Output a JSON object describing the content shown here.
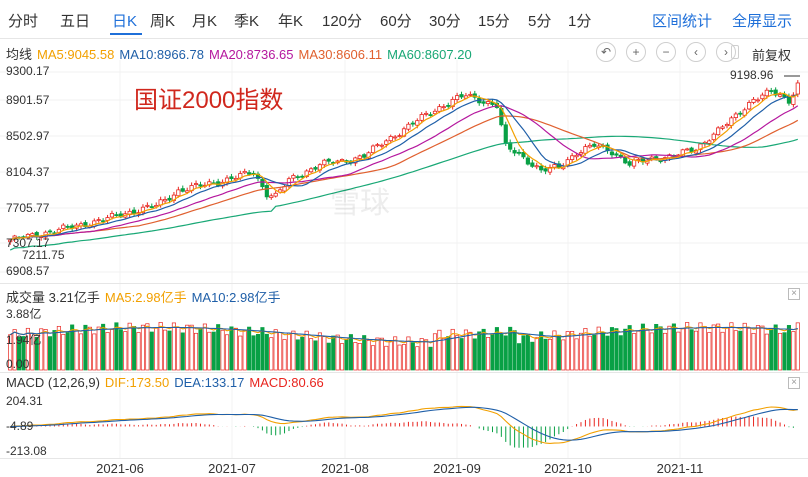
{
  "period_tabs": [
    "分时",
    "五日",
    "日K",
    "周K",
    "月K",
    "季K",
    "年K",
    "120分",
    "60分",
    "30分",
    "15分",
    "5分",
    "1分"
  ],
  "active_tab": "日K",
  "right_links": [
    "区间统计",
    "全屏显示"
  ],
  "controls": {
    "undo_icon": "↶",
    "zoom_in": "+",
    "zoom_out": "−",
    "prev": "‹",
    "next": "›",
    "adjust_label": "前复权"
  },
  "overlay_text": "国证2000指数",
  "watermark": "雪球",
  "colors": {
    "up": "#e8251f",
    "down": "#08a045",
    "ma5": "#f2a000",
    "ma10": "#1f5fa8",
    "ma20": "#b5179e",
    "ma30": "#e0602f",
    "ma60": "#19a876",
    "accent": "#1e6fd9"
  },
  "price_legend": {
    "label": "均线",
    "items": [
      {
        "text": "MA5:9045.58",
        "color": "#f2a000"
      },
      {
        "text": "MA10:8966.78",
        "color": "#1f5fa8"
      },
      {
        "text": "MA20:8736.65",
        "color": "#b5179e"
      },
      {
        "text": "MA30:8606.11",
        "color": "#e0602f"
      },
      {
        "text": "MA60:8607.20",
        "color": "#19a876"
      }
    ]
  },
  "price_axis": [
    "9300.17",
    "8901.57",
    "8502.97",
    "8104.37",
    "7705.77",
    "7307.17",
    "6908.57"
  ],
  "price_markers": {
    "high": "9198.96",
    "low": "7211.75"
  },
  "volume_legend": {
    "items": [
      {
        "text": "成交量 3.21亿手",
        "color": "#333333"
      },
      {
        "text": "MA5:2.98亿手",
        "color": "#f2a000"
      },
      {
        "text": "MA10:2.98亿手",
        "color": "#1f5fa8"
      }
    ],
    "axis_top": "3.88亿",
    "axis_mid": "1.94亿",
    "axis_bottom": "0.00"
  },
  "macd_legend": {
    "items": [
      {
        "text": "MACD (12,26,9)",
        "color": "#333333"
      },
      {
        "text": "DIF:173.50",
        "color": "#f2a000"
      },
      {
        "text": "DEA:133.17",
        "color": "#1f5fa8"
      },
      {
        "text": "MACD:80.66",
        "color": "#e8251f"
      }
    ],
    "axis": [
      "204.31",
      "-4.89",
      "-213.08"
    ]
  },
  "date_labels": [
    "2021-06",
    "2021-07",
    "2021-08",
    "2021-09",
    "2021-10",
    "2021-11"
  ],
  "chart_data": {
    "type": "candlestick",
    "title": "国证2000指数",
    "ylim": [
      6908.57,
      9300.17
    ],
    "x_months": [
      "2021-06",
      "2021-07",
      "2021-08",
      "2021-09",
      "2021-10",
      "2021-11"
    ],
    "close_keypoints": [
      [
        0,
        7290
      ],
      [
        10,
        7400
      ],
      [
        20,
        7520
      ],
      [
        28,
        7640
      ],
      [
        33,
        7700
      ],
      [
        38,
        7880
      ],
      [
        48,
        8000
      ],
      [
        55,
        8100
      ],
      [
        58,
        7850
      ],
      [
        60,
        7820
      ],
      [
        63,
        8000
      ],
      [
        70,
        8200
      ],
      [
        75,
        8230
      ],
      [
        80,
        8300
      ],
      [
        85,
        8480
      ],
      [
        90,
        8650
      ],
      [
        95,
        8820
      ],
      [
        100,
        8960
      ],
      [
        103,
        9020
      ],
      [
        106,
        8970
      ],
      [
        110,
        8900
      ],
      [
        112,
        8400
      ],
      [
        115,
        8320
      ],
      [
        120,
        8120
      ],
      [
        124,
        8160
      ],
      [
        128,
        8340
      ],
      [
        132,
        8420
      ],
      [
        136,
        8350
      ],
      [
        140,
        8200
      ],
      [
        145,
        8260
      ],
      [
        150,
        8300
      ],
      [
        155,
        8380
      ],
      [
        158,
        8520
      ],
      [
        163,
        8720
      ],
      [
        168,
        8980
      ],
      [
        172,
        9060
      ],
      [
        176,
        8960
      ],
      [
        178,
        9160
      ]
    ],
    "volume_ylim": [
      0,
      3.88
    ],
    "volume_unit": "亿手",
    "volume_latest": 3.21,
    "macd": {
      "params": [
        12,
        26,
        9
      ],
      "dif": 173.5,
      "dea": 133.17,
      "macd": 80.66,
      "ylim": [
        -213.08,
        204.31
      ]
    },
    "ma_latest": {
      "MA5": 9045.58,
      "MA10": 8966.78,
      "MA20": 8736.65,
      "MA30": 8606.11,
      "MA60": 8607.2
    }
  }
}
